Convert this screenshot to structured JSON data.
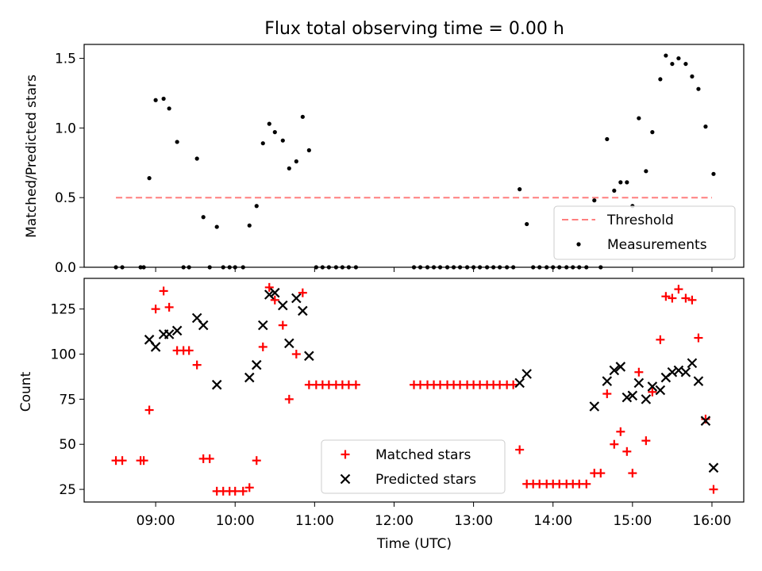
{
  "colors": {
    "threshold": "#ff7f7f",
    "measurements": "#000000",
    "matched": "#ff0000",
    "predicted": "#000000",
    "frame": "#000000"
  },
  "chart_data": [
    {
      "type": "scatter",
      "title": "Flux total observing time = 0.00 h",
      "xlabel": "",
      "ylabel": "Matched/Predicted stars",
      "xlim_hours": [
        8.1,
        16.4
      ],
      "ylim": [
        0,
        1.6
      ],
      "yticks": [
        0.0,
        0.5,
        1.0,
        1.5
      ],
      "ytick_labels": [
        "0.0",
        "0.5",
        "1.0",
        "1.5"
      ],
      "threshold": {
        "name": "Threshold",
        "value": 0.5,
        "x_range": [
          8.5,
          16.0
        ]
      },
      "legend": [
        "Threshold",
        "Measurements"
      ],
      "legend_location": "lower-right",
      "series": [
        {
          "name": "Measurements",
          "points": [
            [
              8.5,
              0
            ],
            [
              8.58,
              0
            ],
            [
              8.81,
              0
            ],
            [
              8.85,
              0
            ],
            [
              8.92,
              0.64
            ],
            [
              9.0,
              1.2
            ],
            [
              9.1,
              1.21
            ],
            [
              9.17,
              1.14
            ],
            [
              9.27,
              0.9
            ],
            [
              9.35,
              0
            ],
            [
              9.42,
              0
            ],
            [
              9.52,
              0.78
            ],
            [
              9.6,
              0.36
            ],
            [
              9.68,
              0
            ],
            [
              9.77,
              0.29
            ],
            [
              9.85,
              0
            ],
            [
              9.93,
              0
            ],
            [
              10.0,
              0
            ],
            [
              10.1,
              0
            ],
            [
              10.18,
              0.3
            ],
            [
              10.27,
              0.44
            ],
            [
              10.35,
              0.89
            ],
            [
              10.43,
              1.03
            ],
            [
              10.5,
              0.97
            ],
            [
              10.6,
              0.91
            ],
            [
              10.68,
              0.71
            ],
            [
              10.77,
              0.76
            ],
            [
              10.85,
              1.08
            ],
            [
              10.93,
              0.84
            ],
            [
              11.02,
              0
            ],
            [
              11.1,
              0
            ],
            [
              11.18,
              0
            ],
            [
              11.27,
              0
            ],
            [
              11.35,
              0
            ],
            [
              11.43,
              0
            ],
            [
              11.52,
              0
            ],
            [
              12.25,
              0
            ],
            [
              12.33,
              0
            ],
            [
              12.42,
              0
            ],
            [
              12.5,
              0
            ],
            [
              12.58,
              0
            ],
            [
              12.67,
              0
            ],
            [
              12.75,
              0
            ],
            [
              12.83,
              0
            ],
            [
              12.92,
              0
            ],
            [
              13.0,
              0
            ],
            [
              13.08,
              0
            ],
            [
              13.17,
              0
            ],
            [
              13.25,
              0
            ],
            [
              13.33,
              0
            ],
            [
              13.42,
              0
            ],
            [
              13.5,
              0
            ],
            [
              13.58,
              0.56
            ],
            [
              13.67,
              0.31
            ],
            [
              13.75,
              0
            ],
            [
              13.83,
              0
            ],
            [
              13.92,
              0
            ],
            [
              14.0,
              0
            ],
            [
              14.08,
              0
            ],
            [
              14.17,
              0
            ],
            [
              14.25,
              0
            ],
            [
              14.33,
              0
            ],
            [
              14.42,
              0
            ],
            [
              14.52,
              0.48
            ],
            [
              14.6,
              0
            ],
            [
              14.68,
              0.92
            ],
            [
              14.77,
              0.55
            ],
            [
              14.85,
              0.61
            ],
            [
              14.93,
              0.61
            ],
            [
              15.0,
              0.44
            ],
            [
              15.08,
              1.07
            ],
            [
              15.17,
              0.69
            ],
            [
              15.25,
              0.97
            ],
            [
              15.35,
              1.35
            ],
            [
              15.42,
              1.52
            ],
            [
              15.5,
              1.46
            ],
            [
              15.58,
              1.5
            ],
            [
              15.67,
              1.46
            ],
            [
              15.75,
              1.37
            ],
            [
              15.83,
              1.28
            ],
            [
              15.92,
              1.01
            ],
            [
              16.02,
              0.67
            ]
          ]
        }
      ]
    },
    {
      "type": "scatter",
      "title": "",
      "xlabel": "Time (UTC)",
      "ylabel": "Count",
      "xlim_hours": [
        8.1,
        16.4
      ],
      "ylim": [
        18,
        142
      ],
      "xticks_hours": [
        9,
        10,
        11,
        12,
        13,
        14,
        15,
        16
      ],
      "xtick_labels": [
        "09:00",
        "10:00",
        "11:00",
        "12:00",
        "13:00",
        "14:00",
        "15:00",
        "16:00"
      ],
      "yticks": [
        25,
        50,
        75,
        100,
        125
      ],
      "ytick_labels": [
        "25",
        "50",
        "75",
        "100",
        "125"
      ],
      "legend": [
        "Matched stars",
        "Predicted stars"
      ],
      "legend_location": "lower-center",
      "series": [
        {
          "name": "Matched stars",
          "marker": "plus",
          "points": [
            [
              8.5,
              41
            ],
            [
              8.58,
              41
            ],
            [
              8.81,
              41
            ],
            [
              8.85,
              41
            ],
            [
              8.92,
              69
            ],
            [
              9.0,
              125
            ],
            [
              9.1,
              135
            ],
            [
              9.17,
              126
            ],
            [
              9.27,
              102
            ],
            [
              9.35,
              102
            ],
            [
              9.42,
              102
            ],
            [
              9.52,
              94
            ],
            [
              9.6,
              42
            ],
            [
              9.68,
              42
            ],
            [
              9.77,
              24
            ],
            [
              9.85,
              24
            ],
            [
              9.93,
              24
            ],
            [
              10.0,
              24
            ],
            [
              10.1,
              24
            ],
            [
              10.18,
              26
            ],
            [
              10.27,
              41
            ],
            [
              10.35,
              104
            ],
            [
              10.43,
              137
            ],
            [
              10.5,
              130
            ],
            [
              10.6,
              116
            ],
            [
              10.68,
              75
            ],
            [
              10.77,
              100
            ],
            [
              10.85,
              134
            ],
            [
              10.93,
              83
            ],
            [
              11.02,
              83
            ],
            [
              11.1,
              83
            ],
            [
              11.18,
              83
            ],
            [
              11.27,
              83
            ],
            [
              11.35,
              83
            ],
            [
              11.43,
              83
            ],
            [
              11.52,
              83
            ],
            [
              12.25,
              83
            ],
            [
              12.33,
              83
            ],
            [
              12.42,
              83
            ],
            [
              12.5,
              83
            ],
            [
              12.58,
              83
            ],
            [
              12.67,
              83
            ],
            [
              12.75,
              83
            ],
            [
              12.83,
              83
            ],
            [
              12.92,
              83
            ],
            [
              13.0,
              83
            ],
            [
              13.08,
              83
            ],
            [
              13.17,
              83
            ],
            [
              13.25,
              83
            ],
            [
              13.33,
              83
            ],
            [
              13.42,
              83
            ],
            [
              13.5,
              83
            ],
            [
              13.58,
              47
            ],
            [
              13.67,
              28
            ],
            [
              13.75,
              28
            ],
            [
              13.83,
              28
            ],
            [
              13.92,
              28
            ],
            [
              14.0,
              28
            ],
            [
              14.08,
              28
            ],
            [
              14.17,
              28
            ],
            [
              14.25,
              28
            ],
            [
              14.33,
              28
            ],
            [
              14.42,
              28
            ],
            [
              14.52,
              34
            ],
            [
              14.6,
              34
            ],
            [
              14.68,
              78
            ],
            [
              14.77,
              50
            ],
            [
              14.85,
              57
            ],
            [
              14.93,
              46
            ],
            [
              15.0,
              34
            ],
            [
              15.08,
              90
            ],
            [
              15.17,
              52
            ],
            [
              15.25,
              79
            ],
            [
              15.35,
              108
            ],
            [
              15.42,
              132
            ],
            [
              15.5,
              131
            ],
            [
              15.58,
              136
            ],
            [
              15.67,
              131
            ],
            [
              15.75,
              130
            ],
            [
              15.83,
              109
            ],
            [
              15.92,
              64
            ],
            [
              16.02,
              25
            ]
          ]
        },
        {
          "name": "Predicted stars",
          "marker": "cross",
          "points": [
            [
              8.92,
              108
            ],
            [
              9.0,
              104
            ],
            [
              9.1,
              111
            ],
            [
              9.17,
              111
            ],
            [
              9.27,
              113
            ],
            [
              9.52,
              120
            ],
            [
              9.6,
              116
            ],
            [
              9.77,
              83
            ],
            [
              10.18,
              87
            ],
            [
              10.27,
              94
            ],
            [
              10.35,
              116
            ],
            [
              10.43,
              133
            ],
            [
              10.5,
              134
            ],
            [
              10.6,
              127
            ],
            [
              10.68,
              106
            ],
            [
              10.77,
              131
            ],
            [
              10.85,
              124
            ],
            [
              10.93,
              99
            ],
            [
              13.58,
              84
            ],
            [
              13.67,
              89
            ],
            [
              14.52,
              71
            ],
            [
              14.68,
              85
            ],
            [
              14.77,
              91
            ],
            [
              14.85,
              93
            ],
            [
              14.93,
              76
            ],
            [
              15.0,
              77
            ],
            [
              15.08,
              84
            ],
            [
              15.17,
              75
            ],
            [
              15.25,
              82
            ],
            [
              15.35,
              80
            ],
            [
              15.42,
              87
            ],
            [
              15.5,
              90
            ],
            [
              15.58,
              91
            ],
            [
              15.67,
              90
            ],
            [
              15.75,
              95
            ],
            [
              15.83,
              85
            ],
            [
              15.92,
              63
            ],
            [
              16.02,
              37
            ]
          ]
        }
      ]
    }
  ]
}
